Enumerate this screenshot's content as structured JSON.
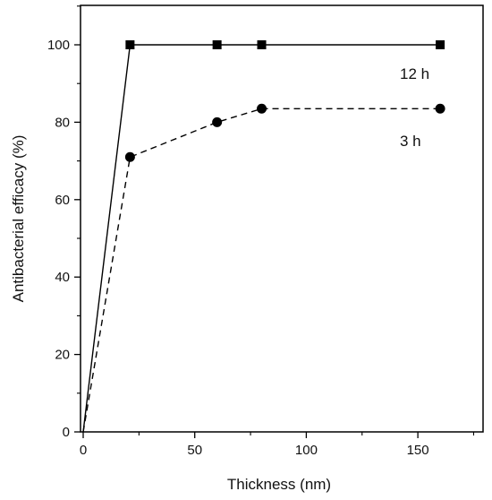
{
  "chart_data": {
    "type": "line",
    "title": "",
    "xlabel": "Thickness (nm)",
    "ylabel": "Antibacterial efficacy (%)",
    "xlim": [
      0,
      180
    ],
    "ylim": [
      0,
      110
    ],
    "x_ticks": [
      0,
      50,
      100,
      150
    ],
    "y_ticks": [
      0,
      20,
      40,
      60,
      80,
      100
    ],
    "grid": false,
    "series": [
      {
        "name": "12 h",
        "marker": "square",
        "line_style": "solid",
        "color": "#000000",
        "points": [
          [
            0,
            0
          ],
          [
            21,
            100
          ],
          [
            60,
            100
          ],
          [
            80,
            100
          ],
          [
            160,
            100
          ]
        ]
      },
      {
        "name": "3 h",
        "marker": "circle",
        "line_style": "dashed",
        "color": "#000000",
        "points": [
          [
            0,
            0
          ],
          [
            21,
            71
          ],
          [
            60,
            80
          ],
          [
            80,
            83.5
          ],
          [
            160,
            83.5
          ]
        ]
      }
    ]
  }
}
